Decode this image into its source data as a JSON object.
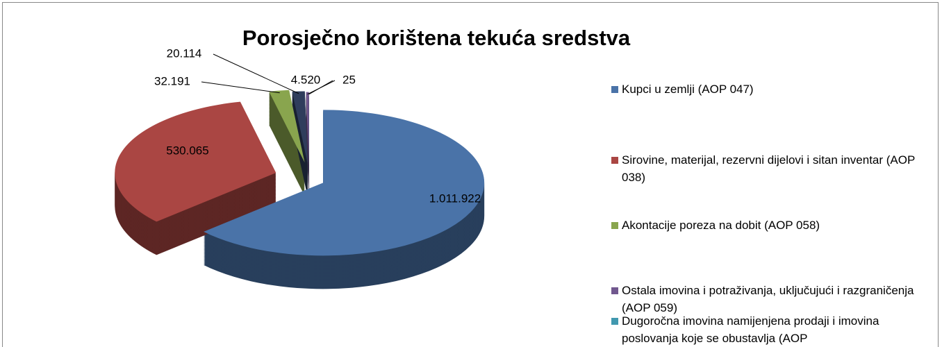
{
  "chart_data": {
    "type": "pie",
    "title": "Porosječno korištena tekuća sredstva",
    "categories": [
      "Kupci u zemlji (AOP 047)",
      "Sirovine, materijal, rezervni dijelovi i sitan inventar (AOP 038)",
      "Akontacije poreza na dobit (AOP 058)",
      null,
      "Ostala imovina i potraživanja, uključujući i razgraničenja (AOP 059)",
      "Dugoročna imovina namijenjena prodaji i imovina poslovanja koje se obustavlja (AOP"
    ],
    "values": [
      1011922,
      530065,
      32191,
      20114,
      4520,
      25
    ],
    "value_labels": [
      "1.011.922",
      "530.065",
      "32.191",
      "20.114",
      "4.520",
      "25"
    ],
    "colors": [
      "#4a73a8",
      "#aa4643",
      "#89a54e",
      "#2f3d5c",
      "#71588f",
      "#4198af"
    ],
    "legend": "right"
  }
}
